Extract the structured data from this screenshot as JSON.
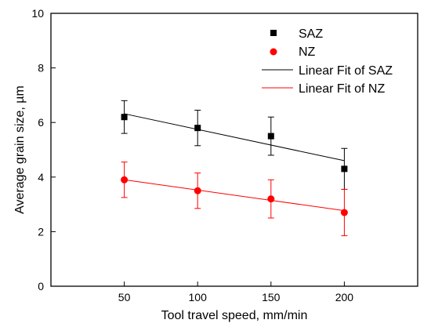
{
  "chart_data": {
    "type": "scatter",
    "title": "",
    "xlabel": "Tool travel speed, mm/min",
    "ylabel": "Average grain size, µm",
    "xlim": [
      0,
      250
    ],
    "ylim": [
      0,
      10
    ],
    "x_ticks": [
      50,
      100,
      150,
      200
    ],
    "y_ticks": [
      0,
      2,
      4,
      6,
      8,
      10
    ],
    "grid": false,
    "legend_position": "top-right",
    "series": [
      {
        "name": "SAZ",
        "marker": "square",
        "color": "#000000",
        "x": [
          50,
          100,
          150,
          200
        ],
        "y": [
          6.2,
          5.8,
          5.5,
          4.3
        ],
        "err_low": [
          0.6,
          0.65,
          0.7,
          0.75
        ],
        "err_high": [
          0.6,
          0.65,
          0.7,
          0.75
        ]
      },
      {
        "name": "NZ",
        "marker": "circle",
        "color": "#ff0000",
        "x": [
          50,
          100,
          150,
          200
        ],
        "y": [
          3.9,
          3.5,
          3.2,
          2.7
        ],
        "err_low": [
          0.65,
          0.65,
          0.7,
          0.85
        ],
        "err_high": [
          0.65,
          0.65,
          0.7,
          0.85
        ]
      }
    ],
    "fits": [
      {
        "name": "Linear Fit of SAZ",
        "color": "#000000",
        "x": [
          50,
          200
        ],
        "y": [
          6.32,
          4.6
        ]
      },
      {
        "name": "Linear Fit of NZ",
        "color": "#ff0000",
        "x": [
          50,
          200
        ],
        "y": [
          3.9,
          2.77
        ]
      }
    ]
  }
}
